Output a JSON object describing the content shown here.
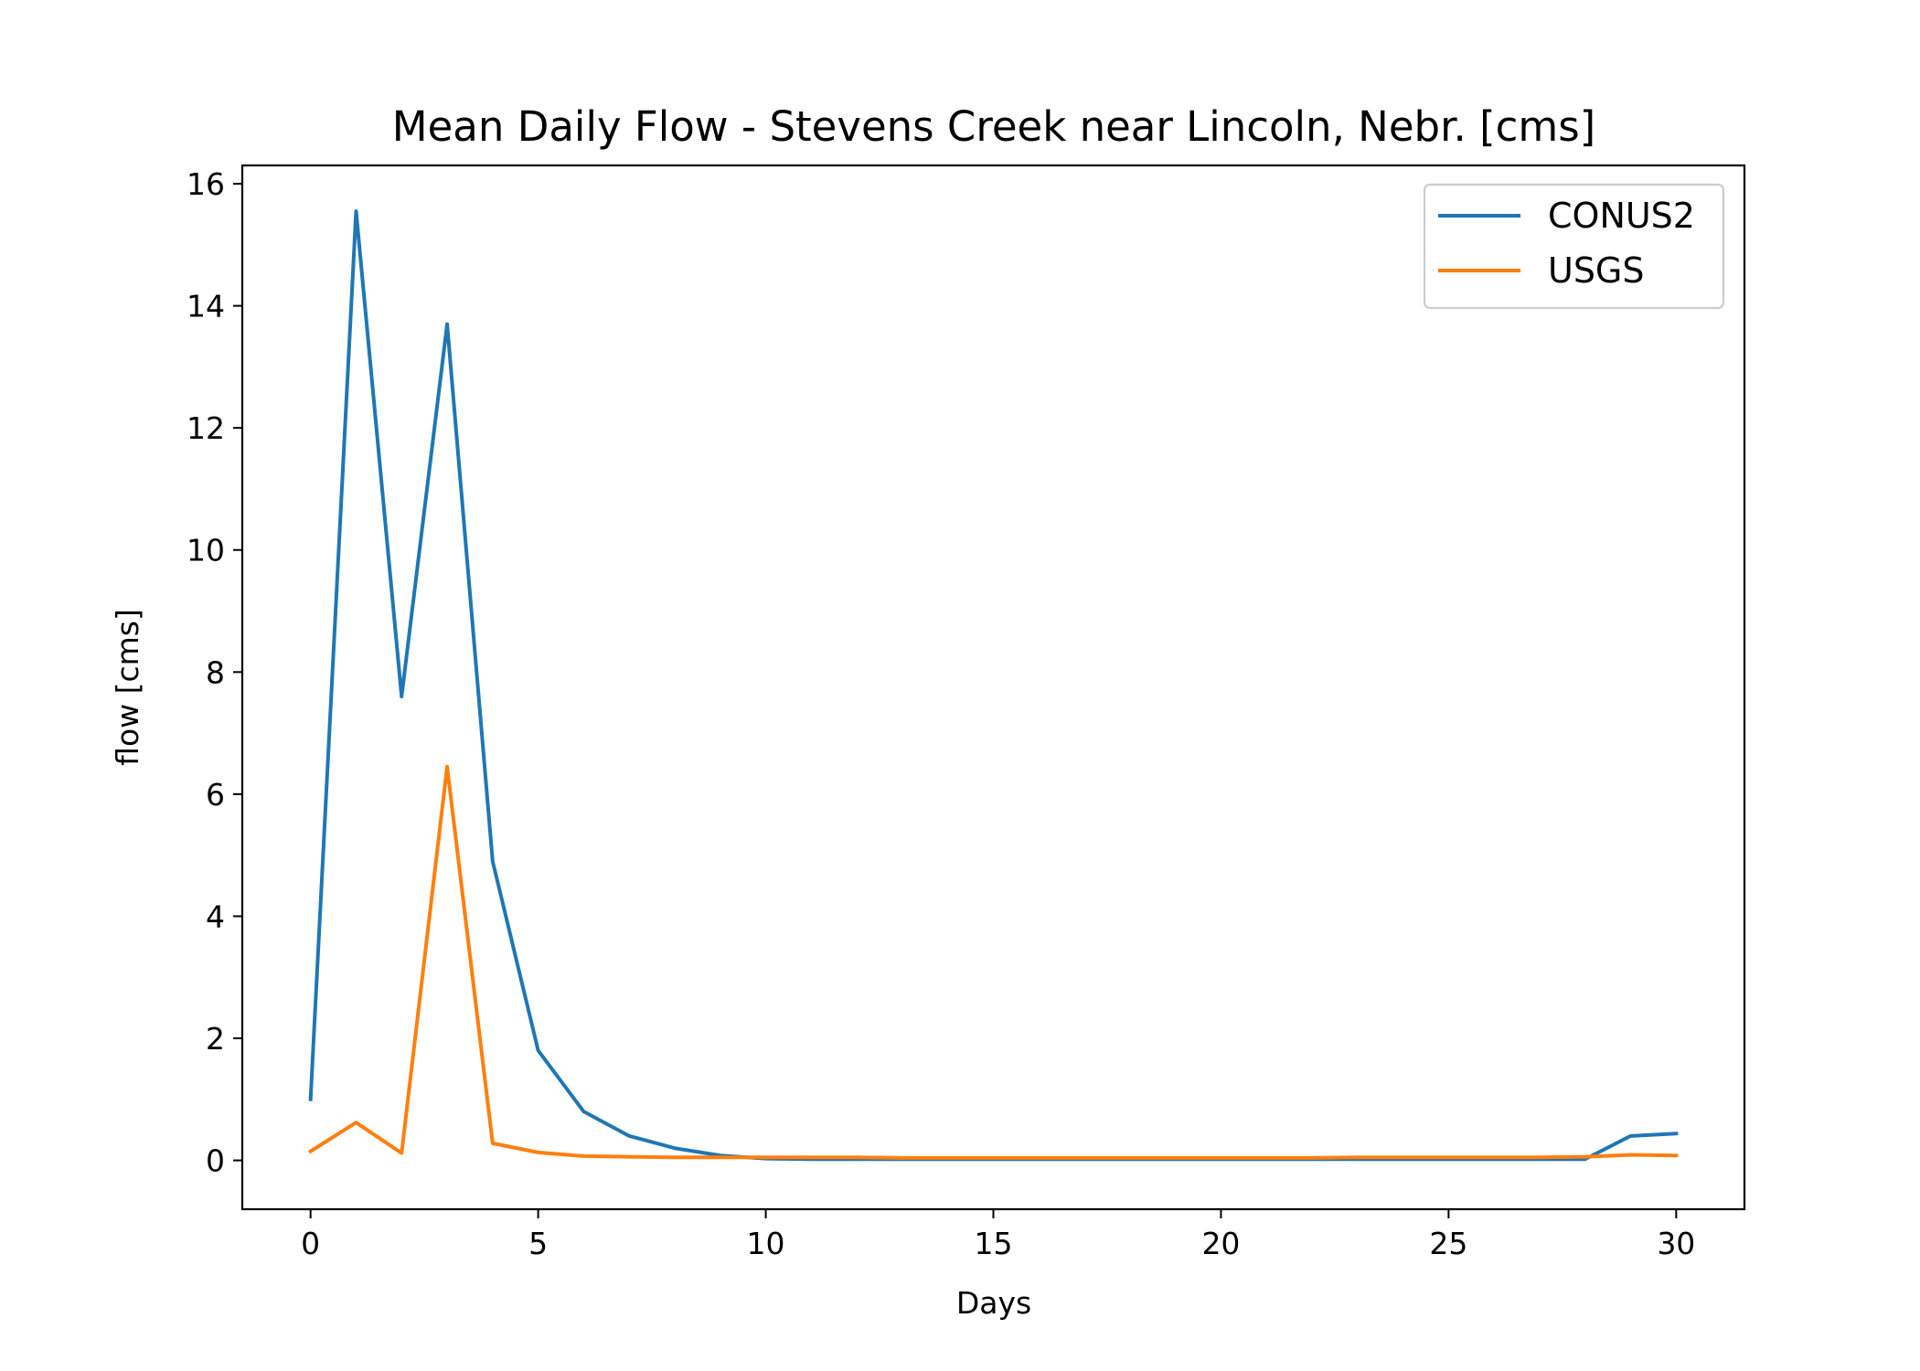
{
  "chart_data": {
    "type": "line",
    "title": "Mean Daily Flow - Stevens Creek near Lincoln, Nebr. [cms]",
    "xlabel": "Days",
    "ylabel": "flow [cms]",
    "xlim": [
      -1.5,
      31.5
    ],
    "ylim": [
      -0.8,
      16.3
    ],
    "xticks": [
      0,
      5,
      10,
      15,
      20,
      25,
      30
    ],
    "yticks": [
      0,
      2,
      4,
      6,
      8,
      10,
      12,
      14,
      16
    ],
    "grid": false,
    "legend_position": "top-right",
    "x": [
      0,
      1,
      2,
      3,
      4,
      5,
      6,
      7,
      8,
      9,
      10,
      11,
      12,
      13,
      14,
      15,
      16,
      17,
      18,
      19,
      20,
      21,
      22,
      23,
      24,
      25,
      26,
      27,
      28,
      29,
      30
    ],
    "series": [
      {
        "name": "CONUS2",
        "color": "#1f77b4",
        "values": [
          1.0,
          15.55,
          7.6,
          13.7,
          4.9,
          1.8,
          0.8,
          0.4,
          0.2,
          0.08,
          0.03,
          0.02,
          0.02,
          0.02,
          0.02,
          0.02,
          0.02,
          0.02,
          0.02,
          0.02,
          0.02,
          0.02,
          0.02,
          0.02,
          0.02,
          0.02,
          0.02,
          0.02,
          0.02,
          0.4,
          0.44
        ]
      },
      {
        "name": "USGS",
        "color": "#ff7f0e",
        "values": [
          0.15,
          0.62,
          0.12,
          6.45,
          0.28,
          0.13,
          0.07,
          0.06,
          0.05,
          0.05,
          0.05,
          0.05,
          0.05,
          0.04,
          0.04,
          0.04,
          0.04,
          0.04,
          0.04,
          0.04,
          0.04,
          0.04,
          0.04,
          0.05,
          0.05,
          0.05,
          0.05,
          0.05,
          0.06,
          0.09,
          0.08
        ]
      }
    ]
  }
}
